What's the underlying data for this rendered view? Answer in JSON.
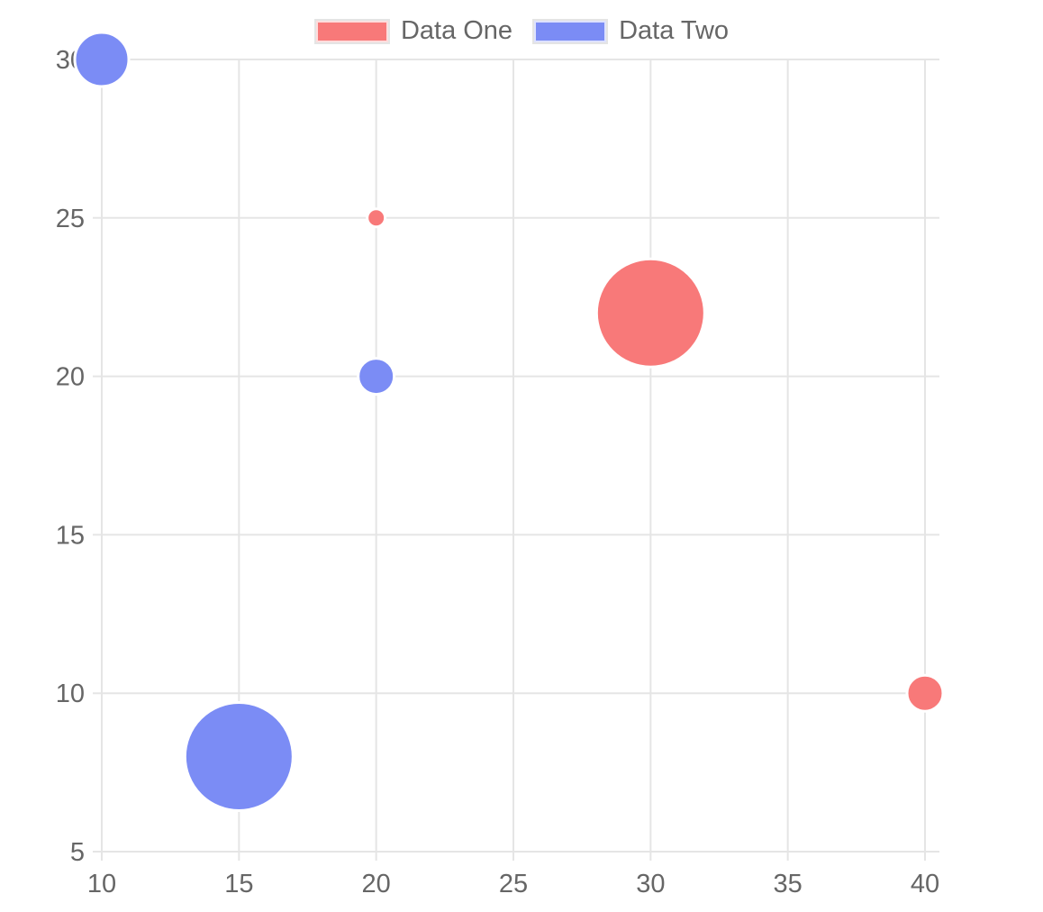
{
  "legend": {
    "items": [
      {
        "label": "Data One",
        "color": "#f87979"
      },
      {
        "label": "Data Two",
        "color": "#7b8cf5"
      }
    ]
  },
  "chart_data": {
    "type": "bubble",
    "title": "",
    "xlabel": "",
    "ylabel": "",
    "series": [
      {
        "name": "Data One",
        "color": "#f87979",
        "points": [
          {
            "x": 20,
            "y": 25,
            "r": 5
          },
          {
            "x": 30,
            "y": 22,
            "r": 30
          },
          {
            "x": 40,
            "y": 10,
            "r": 10
          }
        ]
      },
      {
        "name": "Data Two",
        "color": "#7b8cf5",
        "points": [
          {
            "x": 10,
            "y": 30,
            "r": 15
          },
          {
            "x": 20,
            "y": 20,
            "r": 10
          },
          {
            "x": 15,
            "y": 8,
            "r": 30
          }
        ]
      }
    ],
    "x_ticks": [
      10,
      15,
      20,
      25,
      30,
      35,
      40
    ],
    "y_ticks": [
      5,
      10,
      15,
      20,
      25,
      30
    ],
    "xlim": [
      10,
      40.5
    ],
    "ylim": [
      5,
      30
    ],
    "grid": true,
    "legend_position": "top",
    "styles": {
      "grid_color": "#e5e5e5",
      "tick_text_color": "#666666",
      "bubble_border_color": "#ffffff",
      "background": "#ffffff"
    }
  }
}
